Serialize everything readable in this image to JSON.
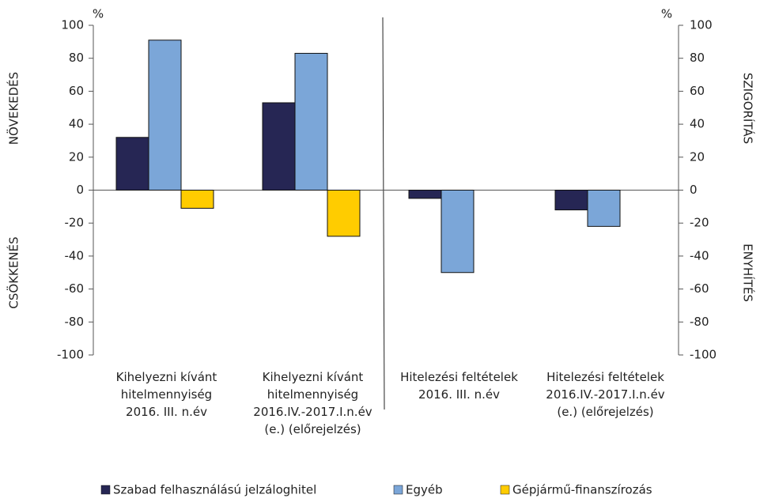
{
  "chart_data": {
    "type": "bar",
    "categories": [
      "Kihelyezni kívánt\nhitelmennyiség\n2016. III. n.év",
      "Kihelyezni kívánt\nhitelmennyiség\n2016.IV.-2017.I.n.év\n(e.) (előrejelzés)",
      "Hitelezési feltételek\n2016. III. n.év",
      "Hitelezési feltételek\n2016.IV.-2017.I.n.év\n(e.) (előrejelzés)"
    ],
    "series": [
      {
        "name": "Szabad felhasználású jelzáloghitel",
        "color": "#262654",
        "values": [
          32,
          53,
          -5,
          -12
        ]
      },
      {
        "name": "Egyéb",
        "color": "#7ba6d8",
        "values": [
          91,
          83,
          -50,
          -22
        ]
      },
      {
        "name": "Gépjármű-finanszírozás",
        "color": "#ffcc00",
        "values": [
          -11,
          -28,
          null,
          null
        ]
      }
    ],
    "ylim": [
      -100,
      100
    ],
    "yticks": [
      -100,
      -80,
      -60,
      -40,
      -20,
      0,
      20,
      40,
      60,
      80,
      100
    ],
    "y2lim": [
      -100,
      100
    ],
    "y2ticks": [
      -100,
      -80,
      -60,
      -40,
      -20,
      0,
      20,
      40,
      60,
      80,
      100
    ],
    "y_unit": "%",
    "y2_unit": "%",
    "y_label_top": "NÖVEKEDÉS",
    "y_label_bottom": "CSÖKKENÉS",
    "y2_label_top": "SZIGORÍTÁS",
    "y2_label_bottom": "ENYHÍTÉS"
  }
}
